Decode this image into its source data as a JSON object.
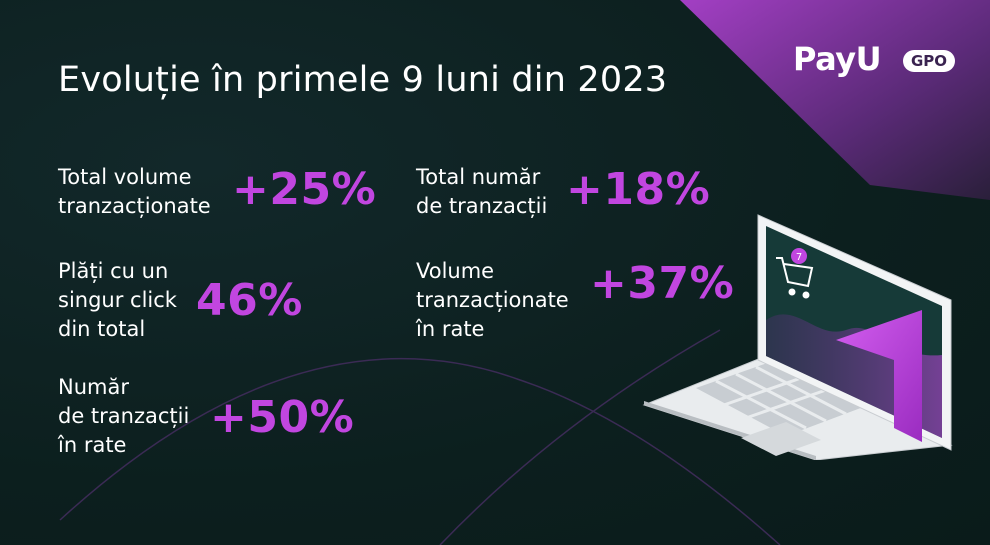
{
  "title": "Evoluție în primele 9 luni din 2023",
  "brand": {
    "name": "PayU",
    "badge": "GPO"
  },
  "stats": [
    {
      "label": "Total volume\ntranzacționate",
      "value": "+25%"
    },
    {
      "label": "Total număr\nde tranzacții",
      "value": "+18%"
    },
    {
      "label": "Plăți cu un\nsingur click\ndin total",
      "value": "46%"
    },
    {
      "label": "Volume\ntranzacționate\nîn rate",
      "value": "+37%"
    },
    {
      "label": "Număr\nde tranzacții\nîn rate",
      "value": "+50%"
    }
  ],
  "laptop_screen": {
    "cart_badge": "7"
  },
  "colors": {
    "accent": "#c146e0",
    "background": "#0e2221",
    "text": "#ffffff"
  }
}
